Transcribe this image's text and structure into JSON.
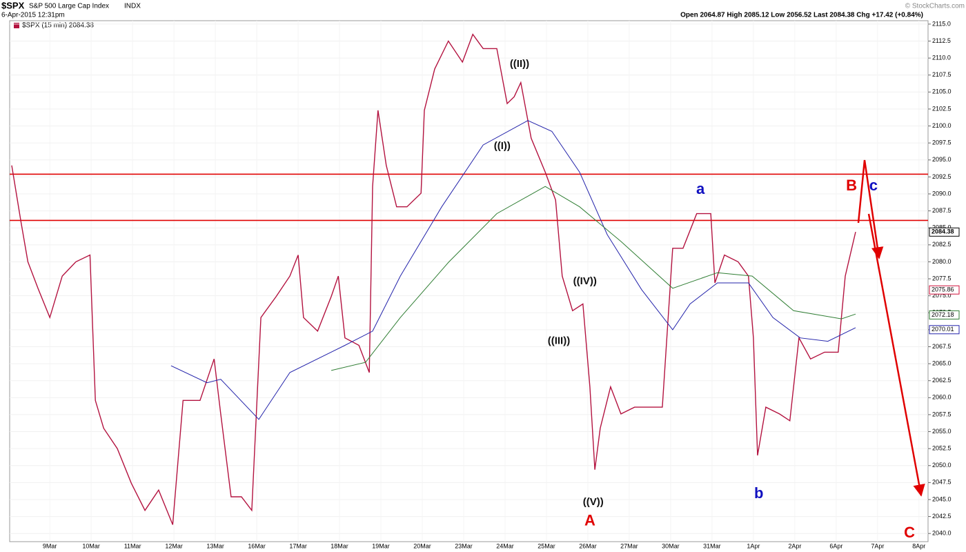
{
  "header": {
    "symbol": "$SPX",
    "name": "S&P 500 Large Cap Index",
    "exchange": "INDX",
    "date": "6-Apr-2015 12:31pm",
    "quote": "Open 2064.87  High 2085.12  Low 2056.52  Last 2084.38  Chg +17.42 (+0.84%)",
    "credit": "© StockCharts.com"
  },
  "chart_data": {
    "type": "line",
    "legend": "$SPX (15 min) 2084.38",
    "xlim": [
      -0.97,
      21.22
    ],
    "ylim": [
      2038.8,
      2115.5
    ],
    "xticks": [
      {
        "value": 0,
        "label": "9Mar"
      },
      {
        "value": 1,
        "label": "10Mar"
      },
      {
        "value": 2,
        "label": "11Mar"
      },
      {
        "value": 3,
        "label": "12Mar"
      },
      {
        "value": 4,
        "label": "13Mar"
      },
      {
        "value": 5,
        "label": "16Mar"
      },
      {
        "value": 6,
        "label": "17Mar"
      },
      {
        "value": 7,
        "label": "18Mar"
      },
      {
        "value": 8,
        "label": "19Mar"
      },
      {
        "value": 9,
        "label": "20Mar"
      },
      {
        "value": 10,
        "label": "23Mar"
      },
      {
        "value": 11,
        "label": "24Mar"
      },
      {
        "value": 12,
        "label": "25Mar"
      },
      {
        "value": 13,
        "label": "26Mar"
      },
      {
        "value": 14,
        "label": "27Mar"
      },
      {
        "value": 15,
        "label": "30Mar"
      },
      {
        "value": 16,
        "label": "31Mar"
      },
      {
        "value": 17,
        "label": "1Apr"
      },
      {
        "value": 18,
        "label": "2Apr"
      },
      {
        "value": 19,
        "label": "6Apr"
      },
      {
        "value": 20,
        "label": "7Apr"
      },
      {
        "value": 21,
        "label": "8Apr"
      }
    ],
    "yticks": [
      {
        "value": 2040,
        "label": "2040.0"
      },
      2042.5,
      {
        "value": 2045,
        "label": "2045.0"
      },
      2047.5,
      {
        "value": 2050,
        "label": "2050.0"
      },
      2052.5,
      {
        "value": 2055,
        "label": "2055.0"
      },
      2057.5,
      {
        "value": 2060,
        "label": "2060.0"
      },
      2062.5,
      {
        "value": 2065,
        "label": "2065.0"
      },
      2067.5,
      {
        "value": 2070,
        "label": "2070.0"
      },
      2072.5,
      {
        "value": 2075,
        "label": "2075.0"
      },
      2077.5,
      {
        "value": 2080,
        "label": "2080.0"
      },
      2082.5,
      {
        "value": 2085,
        "label": "2085.0"
      },
      2087.5,
      {
        "value": 2090,
        "label": "2090.0"
      },
      2092.5,
      {
        "value": 2095,
        "label": "2095.0"
      },
      2097.5,
      {
        "value": 2100,
        "label": "2100.0"
      },
      2102.5,
      {
        "value": 2105,
        "label": "2105.0"
      },
      2107.5,
      {
        "value": 2110,
        "label": "2110.0"
      },
      2112.5,
      {
        "value": 2115,
        "label": "2115.0"
      }
    ],
    "series": [
      {
        "color": "#b3123f",
        "x": [
          -0.92,
          -0.7,
          -0.53,
          -0.28,
          0,
          0.3,
          0.63,
          0.97,
          1.1,
          1.3,
          1.63,
          1.97,
          2.3,
          2.63,
          2.97,
          3.22,
          3.63,
          3.97,
          4.13,
          4.38,
          4.63,
          4.88,
          5.1,
          5.47,
          5.8,
          6,
          6.13,
          6.47,
          6.8,
          6.97,
          7.13,
          7.47,
          7.72,
          7.8,
          7.93,
          8.13,
          8.38,
          8.63,
          8.97,
          9.05,
          9.3,
          9.63,
          9.97,
          10.22,
          10.47,
          10.8,
          11.05,
          11.22,
          11.38,
          11.63,
          11.97,
          12.22,
          12.38,
          12.63,
          12.88,
          13.05,
          13.17,
          13.3,
          13.55,
          13.8,
          14.13,
          14.47,
          14.8,
          15.05,
          15.3,
          15.63,
          15.97,
          16.07,
          16.3,
          16.63,
          16.88,
          17,
          17.1,
          17.3,
          17.63,
          17.88,
          18.1,
          18.38,
          18.72,
          19.05,
          19.22,
          19.47
        ],
        "values": [
          2094.2,
          2086,
          2080,
          2076,
          2071.8,
          2077.9,
          2080,
          2081,
          2059.6,
          2055.5,
          2052.5,
          2047.4,
          2043.4,
          2046.4,
          2041.3,
          2059.6,
          2059.6,
          2065.7,
          2057.6,
          2045.4,
          2045.4,
          2043.4,
          2071.8,
          2074.9,
          2077.9,
          2081,
          2071.8,
          2069.8,
          2074.9,
          2077.9,
          2068.8,
          2067.7,
          2063.7,
          2091.1,
          2102.3,
          2094.2,
          2088.1,
          2088.1,
          2090.1,
          2102.3,
          2108.4,
          2112.5,
          2109.4,
          2113.5,
          2111.4,
          2111.4,
          2103.3,
          2104.3,
          2106.4,
          2098.2,
          2093.2,
          2089.1,
          2077.9,
          2072.8,
          2073.8,
          2061.6,
          2049.4,
          2055.5,
          2061.6,
          2057.6,
          2058.6,
          2058.6,
          2058.6,
          2082,
          2082,
          2087.1,
          2087.1,
          2076.9,
          2081,
          2080,
          2077.9,
          2068.8,
          2051.5,
          2058.6,
          2057.6,
          2056.6,
          2068.8,
          2065.7,
          2066.7,
          2066.7,
          2077.9,
          2084.4
        ]
      },
      {
        "color": "#2222aa",
        "x": [
          2.93,
          3.8,
          4.13,
          5.05,
          5.8,
          7.13,
          7.8,
          8.47,
          9.47,
          10.47,
          11.55,
          12.13,
          12.8,
          13.47,
          14.3,
          15.05,
          15.47,
          16.13,
          16.88,
          17.47,
          18.13,
          18.8,
          19.47
        ],
        "values": [
          2064.7,
          2062.2,
          2062.7,
          2056.8,
          2063.7,
          2067.7,
          2069.8,
          2077.9,
          2088.1,
          2097.2,
          2100.8,
          2099.2,
          2093.2,
          2084,
          2075.9,
          2070,
          2073.8,
          2076.9,
          2076.9,
          2071.8,
          2068.8,
          2068.3,
          2070.3
        ]
      },
      {
        "color": "#2e7d32",
        "x": [
          6.8,
          7.63,
          8.47,
          9.63,
          10.8,
          11.97,
          12.8,
          13.8,
          15.05,
          16.13,
          16.97,
          17.97,
          19.13,
          19.47
        ],
        "values": [
          2064,
          2065.2,
          2071.8,
          2079.9,
          2087.1,
          2091.1,
          2088.1,
          2083,
          2076.1,
          2078.4,
          2077.9,
          2072.8,
          2071.6,
          2072.3
        ]
      }
    ],
    "levels": [
      {
        "value": 2092.9,
        "color": "#e00000"
      },
      {
        "value": 2086.1,
        "color": "#e00000"
      }
    ],
    "price_labels": [
      {
        "value": 2084.38,
        "color": "#000000"
      },
      {
        "value": 2075.86,
        "color": "#d0103a"
      },
      {
        "value": 2072.18,
        "color": "#2e7d32"
      },
      {
        "value": 2070.01,
        "color": "#2222aa"
      }
    ],
    "annotations": [
      {
        "text": "((II))",
        "x": 11.35,
        "y": 2109.1,
        "color": "#111111"
      },
      {
        "text": "((I))",
        "x": 10.93,
        "y": 2097,
        "color": "#111111"
      },
      {
        "text": "((IV))",
        "x": 12.93,
        "y": 2077.1,
        "color": "#111111"
      },
      {
        "text": "((III))",
        "x": 12.3,
        "y": 2068.3,
        "color": "#111111"
      },
      {
        "text": "((V))",
        "x": 13.13,
        "y": 2044.6,
        "color": "#111111"
      },
      {
        "text": "A",
        "x": 13.05,
        "y": 2041.8,
        "color": "#e00000"
      },
      {
        "text": "a",
        "x": 15.72,
        "y": 2090.6,
        "color": "#1010c0"
      },
      {
        "text": "b",
        "x": 17.13,
        "y": 2045.8,
        "color": "#1010c0"
      },
      {
        "text": "B",
        "x": 19.37,
        "y": 2091.1,
        "color": "#e00000"
      },
      {
        "text": "c",
        "x": 19.9,
        "y": 2091.1,
        "color": "#1010c0"
      },
      {
        "text": "C",
        "x": 20.77,
        "y": 2040,
        "color": "#e00000"
      }
    ]
  }
}
